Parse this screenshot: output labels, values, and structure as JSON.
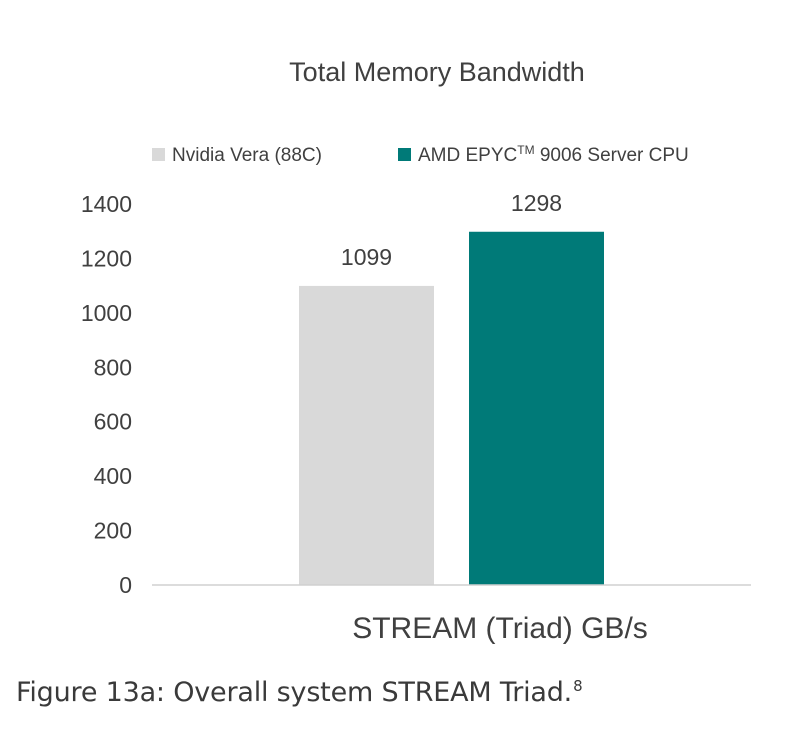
{
  "chart_data": {
    "type": "bar",
    "title": "Total Memory Bandwidth",
    "xlabel": "STREAM (Triad) GB/s",
    "ylabel": "",
    "categories": [
      "STREAM (Triad) GB/s"
    ],
    "series": [
      {
        "name": "Nvidia Vera (88C)",
        "values": [
          1099
        ],
        "color": "#d9d9d9"
      },
      {
        "name": "AMD EPYC",
        "name_superscript": "TM",
        "name_suffix": " 9006 Server CPU",
        "values": [
          1298
        ],
        "color": "#007a78"
      }
    ],
    "ylim": [
      0,
      1400
    ],
    "yticks": [
      0,
      200,
      400,
      600,
      800,
      1000,
      1200,
      1400
    ],
    "data_labels": [
      "1099",
      "1298"
    ],
    "grid": false,
    "legend_position": "top"
  },
  "caption": {
    "text": "Figure 13a: Overall system STREAM Triad.",
    "footnote": "8"
  }
}
